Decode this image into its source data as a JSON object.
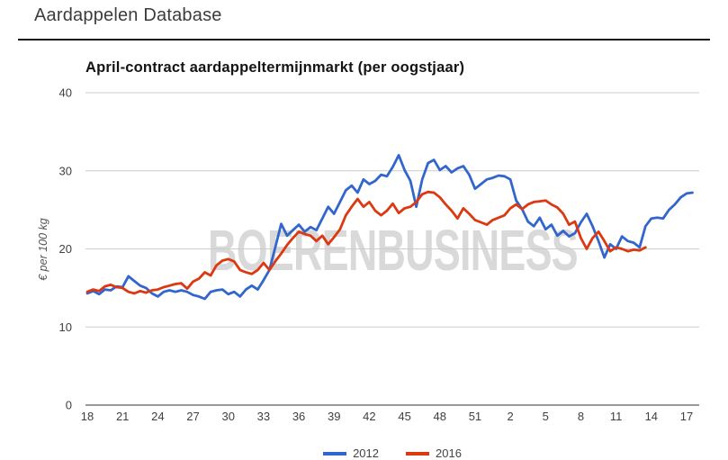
{
  "header": {
    "title": "Aardappelen Database"
  },
  "watermark": {
    "text": "BOERENBUSINESS",
    "color": "#d9d9d9"
  },
  "chart_data": {
    "type": "line",
    "title": "April-contract aardappeltermijnmarkt (per oogstjaar)",
    "xlabel": "",
    "ylabel": "€ per 100 kg",
    "ylim": [
      0,
      40
    ],
    "y_ticks": [
      0,
      10,
      20,
      30,
      40
    ],
    "x_tick_labels": [
      "18",
      "21",
      "24",
      "27",
      "30",
      "33",
      "36",
      "39",
      "42",
      "45",
      "48",
      "51",
      "2",
      "5",
      "8",
      "11",
      "14",
      "17"
    ],
    "x_start_week": 18,
    "x_step_weeks": 0.5,
    "grid": true,
    "legend_position": "bottom",
    "axis_text_color": "#404040",
    "grid_color": "#cccccc",
    "baseline_color": "#333333",
    "series": [
      {
        "name": "2012",
        "color": "#3366cc",
        "values": [
          14.3,
          14.6,
          14.2,
          14.8,
          14.7,
          15.2,
          15.1,
          16.5,
          15.9,
          15.3,
          15.0,
          14.3,
          13.9,
          14.5,
          14.7,
          14.5,
          14.7,
          14.5,
          14.1,
          13.9,
          13.6,
          14.5,
          14.7,
          14.8,
          14.2,
          14.5,
          13.9,
          14.8,
          15.3,
          14.8,
          16.0,
          17.3,
          20.2,
          23.2,
          21.7,
          22.4,
          23.1,
          22.2,
          22.8,
          22.4,
          23.9,
          25.4,
          24.5,
          26.0,
          27.5,
          28.1,
          27.2,
          28.9,
          28.3,
          28.7,
          29.5,
          29.3,
          30.5,
          32.0,
          30.1,
          28.7,
          25.4,
          28.9,
          31.0,
          31.4,
          30.1,
          30.6,
          29.8,
          30.3,
          30.6,
          29.5,
          27.7,
          28.3,
          28.9,
          29.1,
          29.4,
          29.3,
          28.9,
          26.2,
          25.1,
          23.5,
          22.9,
          24.0,
          22.5,
          23.1,
          21.7,
          22.3,
          21.6,
          22.0,
          23.4,
          24.5,
          22.9,
          21.0,
          18.9,
          20.6,
          20.0,
          21.6,
          21.0,
          20.8,
          20.2,
          22.9,
          23.9,
          24.0,
          23.9,
          25.0,
          25.7,
          26.6,
          27.1,
          27.2
        ]
      },
      {
        "name": "2016",
        "color": "#dc3912",
        "values": [
          14.5,
          14.8,
          14.6,
          15.2,
          15.4,
          15.1,
          15.0,
          14.5,
          14.3,
          14.6,
          14.4,
          14.7,
          14.8,
          15.1,
          15.3,
          15.5,
          15.6,
          14.9,
          15.8,
          16.2,
          17.0,
          16.6,
          17.9,
          18.5,
          18.7,
          18.4,
          17.3,
          17.0,
          16.8,
          17.3,
          18.2,
          17.3,
          18.4,
          19.4,
          20.5,
          21.4,
          22.2,
          21.9,
          21.7,
          21.0,
          21.7,
          20.6,
          21.5,
          22.5,
          24.3,
          25.4,
          26.4,
          25.4,
          26.0,
          24.9,
          24.3,
          24.9,
          25.8,
          24.6,
          25.2,
          25.4,
          26.0,
          27.0,
          27.3,
          27.2,
          26.6,
          25.7,
          24.9,
          23.9,
          25.2,
          24.5,
          23.7,
          23.4,
          23.1,
          23.7,
          24.0,
          24.3,
          25.2,
          25.7,
          25.1,
          25.7,
          26.0,
          26.1,
          26.2,
          25.7,
          25.3,
          24.5,
          23.1,
          23.5,
          21.4,
          20.0,
          21.4,
          22.2,
          21.0,
          19.7,
          20.2,
          20.0,
          19.7,
          19.9,
          19.8,
          20.2
        ]
      }
    ]
  }
}
